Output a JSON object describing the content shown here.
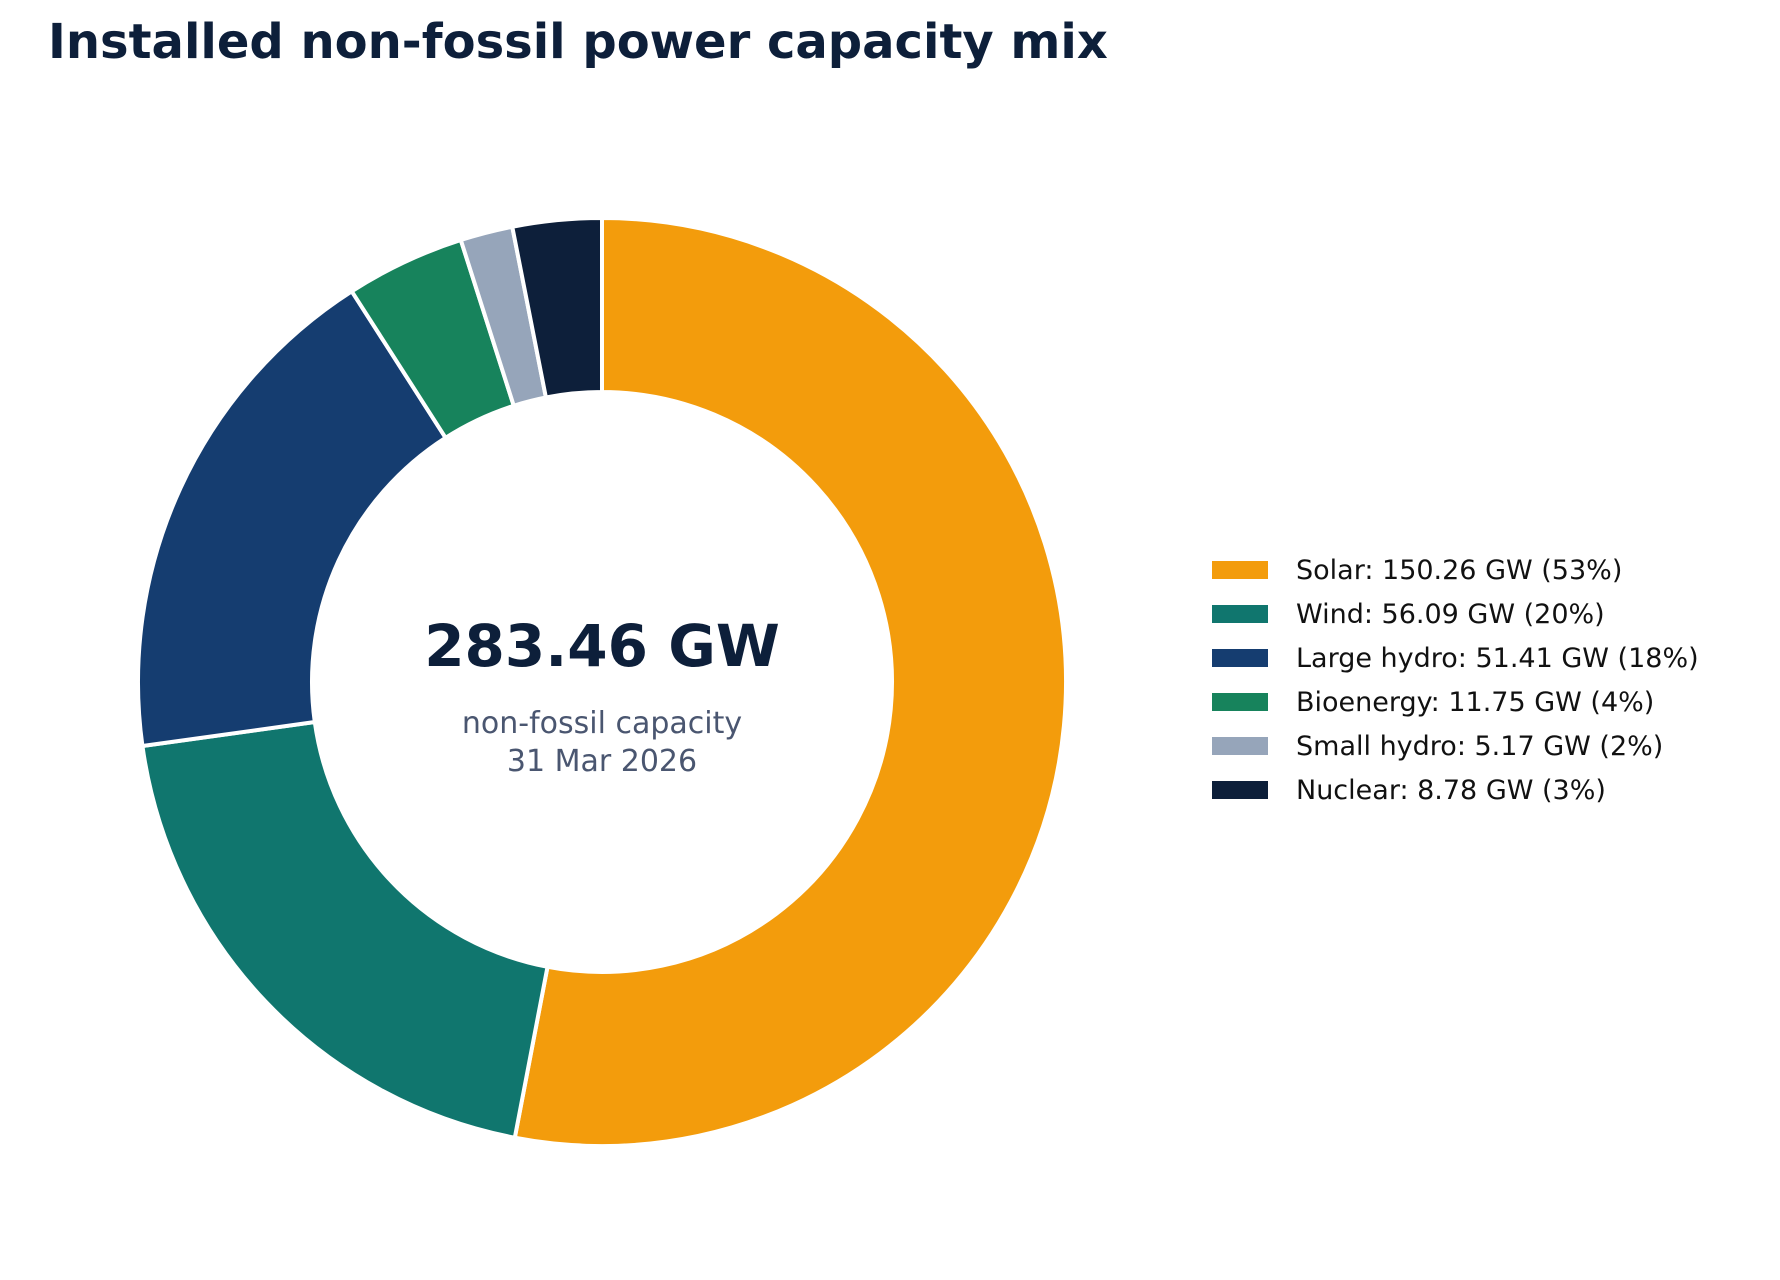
{
  "title": "Installed non-fossil power capacity mix",
  "center": {
    "total": "283.46 GW",
    "caption_line1": "non-fossil capacity",
    "caption_line2": "31 Mar 2026"
  },
  "chart_data": {
    "type": "pie",
    "variant": "donut",
    "title": "Installed non-fossil power capacity mix",
    "unit": "GW",
    "total": 283.46,
    "legend_position": "right",
    "start": "top, clockwise",
    "slices": [
      {
        "label": "Solar",
        "value": 150.26,
        "percent": 53,
        "color": "#f39c0c",
        "legend": "Solar: 150.26 GW (53%)"
      },
      {
        "label": "Wind",
        "value": 56.09,
        "percent": 20,
        "color": "#10766e",
        "legend": "Wind: 56.09 GW (20%)"
      },
      {
        "label": "Large hydro",
        "value": 51.41,
        "percent": 18,
        "color": "#153d70",
        "legend": "Large hydro: 51.41 GW (18%)"
      },
      {
        "label": "Bioenergy",
        "value": 11.75,
        "percent": 4,
        "color": "#17835c",
        "legend": "Bioenergy: 11.75 GW (4%)"
      },
      {
        "label": "Small hydro",
        "value": 5.17,
        "percent": 2,
        "color": "#96a5ba",
        "legend": "Small hydro: 5.17 GW (2%)"
      },
      {
        "label": "Nuclear",
        "value": 8.78,
        "percent": 3,
        "color": "#0d1f3a",
        "legend": "Nuclear: 8.78 GW (3%)"
      }
    ]
  }
}
